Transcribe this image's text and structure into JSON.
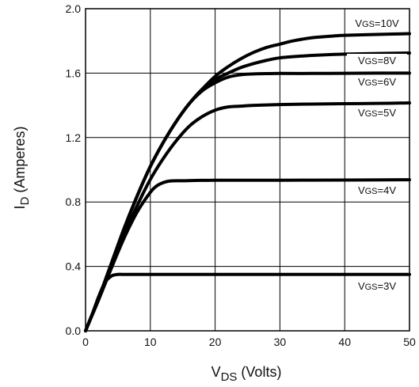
{
  "chart_data": {
    "type": "line",
    "xlabel": {
      "main": "V",
      "sub": "DS",
      "suffix": " (Volts)"
    },
    "ylabel": {
      "main": "I",
      "sub": "D",
      "suffix": " (Amperes)"
    },
    "xlim": [
      0,
      50
    ],
    "ylim": [
      0,
      2.0
    ],
    "x_ticks": [
      "0",
      "10",
      "20",
      "30",
      "40",
      "50"
    ],
    "y_ticks": [
      "0.0",
      "0.4",
      "0.8",
      "1.2",
      "1.6",
      "2.0"
    ],
    "grid": true,
    "line_color": "#000000",
    "series": [
      {
        "label_prefix": "V",
        "label_sub": "GS",
        "label_value": "=10V",
        "x": [
          0,
          2,
          4,
          6,
          8,
          10,
          12,
          14,
          16,
          18,
          20,
          22,
          24,
          26,
          28,
          30,
          32,
          35,
          38,
          40,
          45,
          50
        ],
        "y": [
          0,
          0.2,
          0.42,
          0.64,
          0.84,
          1.02,
          1.17,
          1.3,
          1.41,
          1.5,
          1.58,
          1.64,
          1.69,
          1.73,
          1.76,
          1.78,
          1.8,
          1.82,
          1.83,
          1.835,
          1.84,
          1.845
        ]
      },
      {
        "label_prefix": "V",
        "label_sub": "GS",
        "label_value": "=8V",
        "x": [
          0,
          2,
          4,
          6,
          8,
          10,
          12,
          14,
          16,
          18,
          20,
          22,
          24,
          26,
          28,
          30,
          33,
          36,
          40,
          45,
          50
        ],
        "y": [
          0,
          0.2,
          0.42,
          0.64,
          0.84,
          1.02,
          1.17,
          1.3,
          1.41,
          1.5,
          1.56,
          1.6,
          1.635,
          1.66,
          1.68,
          1.695,
          1.705,
          1.712,
          1.718,
          1.722,
          1.725
        ]
      },
      {
        "label_prefix": "V",
        "label_sub": "GS",
        "label_value": "=6V",
        "x": [
          0,
          2,
          4,
          6,
          8,
          10,
          12,
          14,
          16,
          18,
          20,
          22,
          24,
          26,
          28,
          30,
          35,
          40,
          45,
          50
        ],
        "y": [
          0,
          0.2,
          0.42,
          0.64,
          0.84,
          1.02,
          1.17,
          1.3,
          1.41,
          1.49,
          1.54,
          1.575,
          1.59,
          1.595,
          1.597,
          1.598,
          1.598,
          1.599,
          1.6,
          1.6
        ]
      },
      {
        "label_prefix": "V",
        "label_sub": "GS",
        "label_value": "=5V",
        "x": [
          0,
          2,
          4,
          6,
          8,
          10,
          12,
          14,
          16,
          18,
          20,
          22,
          24,
          26,
          30,
          35,
          40,
          45,
          50
        ],
        "y": [
          0,
          0.2,
          0.41,
          0.6,
          0.78,
          0.94,
          1.07,
          1.18,
          1.27,
          1.33,
          1.37,
          1.39,
          1.395,
          1.4,
          1.405,
          1.408,
          1.41,
          1.412,
          1.415
        ]
      },
      {
        "label_prefix": "V",
        "label_sub": "GS",
        "label_value": "=4V",
        "x": [
          0,
          2,
          4,
          6,
          8,
          10,
          11,
          12,
          13,
          15,
          20,
          30,
          40,
          50
        ],
        "y": [
          0,
          0.19,
          0.39,
          0.58,
          0.74,
          0.86,
          0.9,
          0.92,
          0.93,
          0.932,
          0.935,
          0.935,
          0.936,
          0.938
        ]
      },
      {
        "label_prefix": "V",
        "label_sub": "GS",
        "label_value": "=3V",
        "x": [
          0,
          1,
          2,
          3,
          4,
          5,
          6,
          10,
          20,
          30,
          40,
          50
        ],
        "y": [
          0,
          0.1,
          0.21,
          0.3,
          0.34,
          0.35,
          0.35,
          0.35,
          0.35,
          0.35,
          0.35,
          0.35
        ]
      }
    ]
  }
}
